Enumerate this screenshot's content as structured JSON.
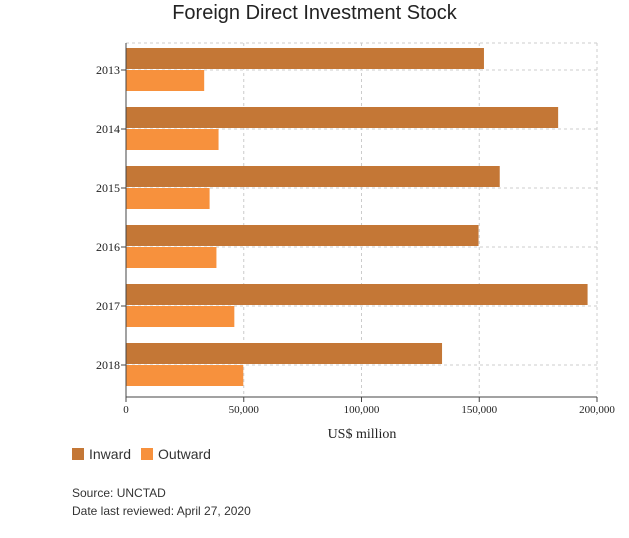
{
  "chart_data": {
    "type": "bar",
    "orientation": "horizontal",
    "title": "Foreign Direct Investment Stock",
    "xlabel": "US$ million",
    "ylabel": "",
    "categories": [
      "2013",
      "2014",
      "2015",
      "2016",
      "2017",
      "2018"
    ],
    "series": [
      {
        "name": "Inward",
        "color": "#c47736",
        "values": [
          152000,
          183500,
          158700,
          149700,
          196000,
          134200
        ]
      },
      {
        "name": "Outward",
        "color": "#f7913d",
        "values": [
          33200,
          39300,
          35500,
          38400,
          46000,
          49800
        ]
      }
    ],
    "xlim": [
      0,
      200000
    ],
    "xticks": [
      0,
      50000,
      100000,
      150000,
      200000
    ],
    "xtick_labels": [
      "0",
      "50,000",
      "100,000",
      "150,000",
      "200,000"
    ],
    "grid": true,
    "legend_position": "bottom-left"
  },
  "source_text": "Source: UNCTAD",
  "reviewed_text": "Date last reviewed: April 27, 2020"
}
